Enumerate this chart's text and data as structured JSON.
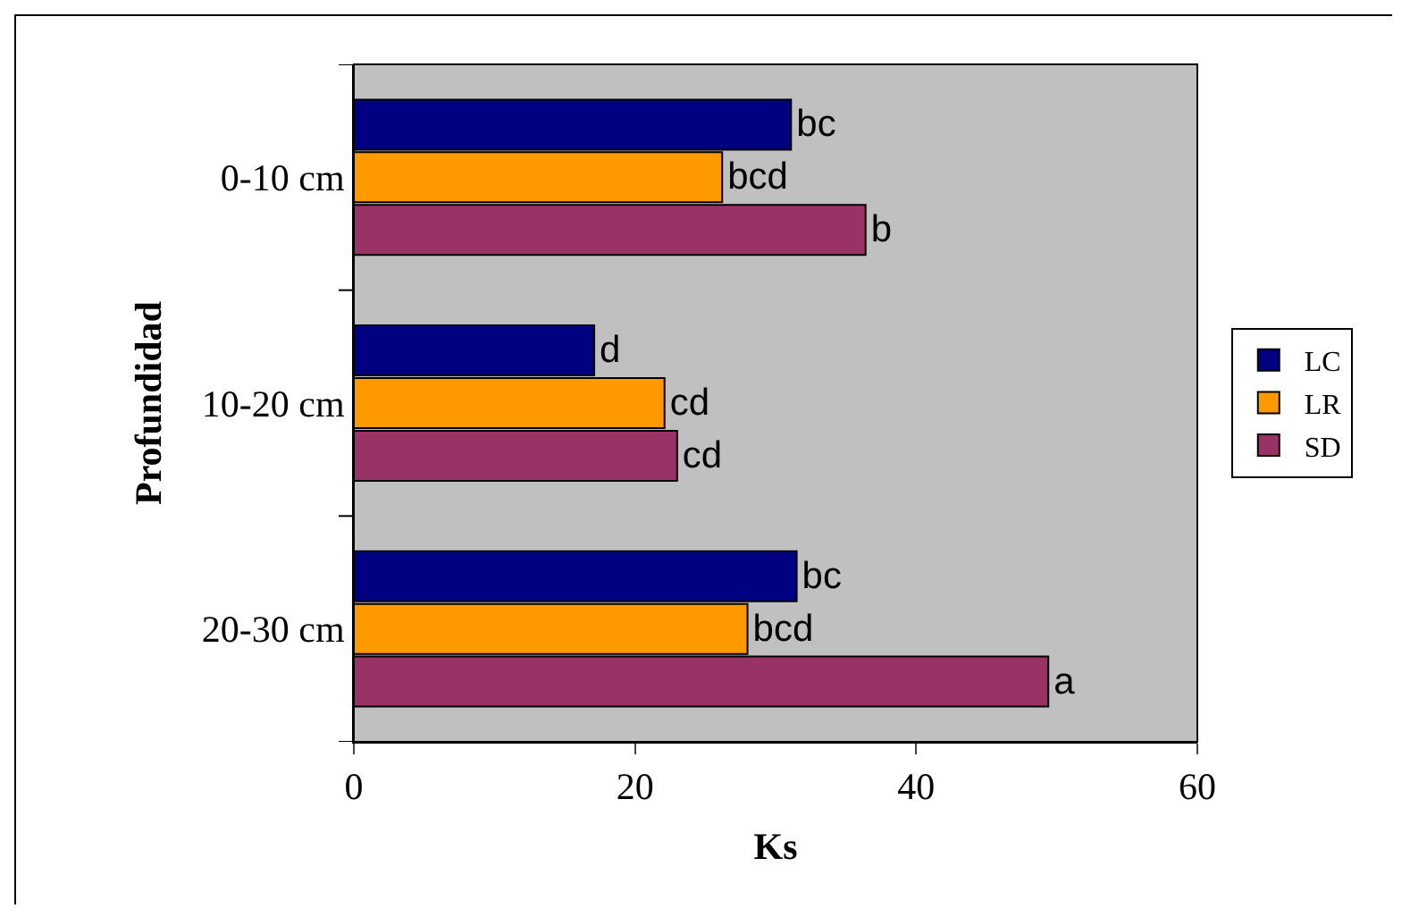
{
  "chart_data": {
    "type": "bar",
    "orientation": "horizontal",
    "xlabel": "Ks",
    "ylabel": "Profundidad",
    "categories": [
      "0-10 cm",
      "10-20 cm",
      "20-30 cm"
    ],
    "series": [
      {
        "name": "LC",
        "color": "#000080",
        "values": [
          31.1,
          17.1,
          31.5
        ],
        "value_labels": [
          "bc",
          "d",
          "bc"
        ]
      },
      {
        "name": "LR",
        "color": "#ff9900",
        "values": [
          26.2,
          22.1,
          28.0
        ],
        "value_labels": [
          "bcd",
          "cd",
          "bcd"
        ]
      },
      {
        "name": "SD",
        "color": "#993366",
        "values": [
          36.4,
          23.0,
          49.4
        ],
        "value_labels": [
          "b",
          "cd",
          "a"
        ]
      }
    ],
    "xlim": [
      0,
      60
    ],
    "xticks": [
      0,
      20,
      40,
      60
    ],
    "grid": false,
    "legend": "right"
  }
}
